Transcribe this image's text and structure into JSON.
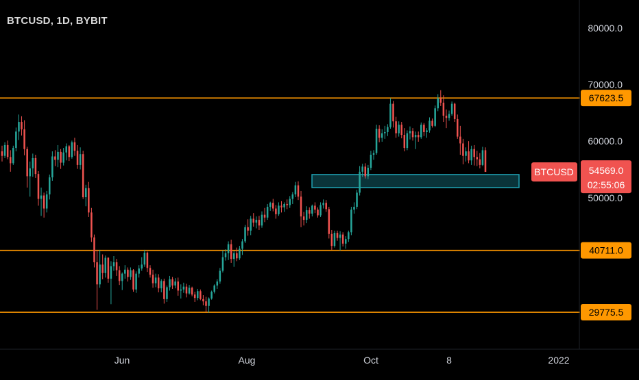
{
  "header": {
    "symbol_title": "BTCUSD, 1D, BYBIT"
  },
  "colors": {
    "background": "#000000",
    "up": "#26a69a",
    "down": "#ef5350",
    "level_line": "#ff9800",
    "zone": "#1fa3b5",
    "axis_text": "#d1d4dc"
  },
  "chart_data": {
    "type": "candlestick",
    "symbol": "BTCUSD",
    "interval": "1D",
    "exchange": "BYBIT",
    "ylim": [
      25000,
      82000
    ],
    "y_ticks": [
      {
        "value": 80000,
        "label": "80000.0"
      },
      {
        "value": 70000,
        "label": "70000.0"
      },
      {
        "value": 60000,
        "label": "60000.0"
      },
      {
        "value": 50000,
        "label": "50000.0"
      }
    ],
    "x_ticks": [
      "Jun",
      "Aug",
      "Oct",
      "8",
      "2022"
    ],
    "horizontal_levels": [
      {
        "value": 67623.5,
        "label": "67623.5"
      },
      {
        "value": 40711.0,
        "label": "40711.0"
      },
      {
        "value": 29775.5,
        "label": "29775.5"
      }
    ],
    "zone": {
      "low": 51800,
      "high": 54100
    },
    "last_price": {
      "symbol": "BTCUSD",
      "value": 54569.0,
      "label": "54569.0",
      "countdown": "02:55:06"
    },
    "candles": [
      [
        58200,
        59200,
        56400,
        57400
      ],
      [
        57400,
        59800,
        57000,
        59300
      ],
      [
        59300,
        60100,
        56800,
        57200
      ],
      [
        57200,
        58400,
        54600,
        56100
      ],
      [
        56100,
        59200,
        55800,
        58800
      ],
      [
        58800,
        62400,
        58200,
        61700
      ],
      [
        61700,
        64700,
        60200,
        63400
      ],
      [
        63400,
        64400,
        61000,
        62100
      ],
      [
        62100,
        63700,
        57500,
        58600
      ],
      [
        58600,
        59000,
        51800,
        53800
      ],
      [
        53800,
        56400,
        50200,
        55200
      ],
      [
        55200,
        57800,
        53700,
        57000
      ],
      [
        57000,
        57600,
        53500,
        54200
      ],
      [
        54200,
        54700,
        48600,
        49800
      ],
      [
        49800,
        51800,
        46800,
        50400
      ],
      [
        50400,
        50900,
        46500,
        48100
      ],
      [
        48100,
        51200,
        47400,
        50600
      ],
      [
        50600,
        54100,
        49700,
        53600
      ],
      [
        53600,
        58200,
        53000,
        57300
      ],
      [
        57300,
        58400,
        55600,
        56700
      ],
      [
        56700,
        59300,
        55400,
        58100
      ],
      [
        58100,
        58600,
        55100,
        56200
      ],
      [
        56200,
        58800,
        55700,
        58000
      ],
      [
        58000,
        59600,
        56600,
        59100
      ],
      [
        59100,
        59300,
        56500,
        57200
      ],
      [
        57200,
        60100,
        56900,
        59800
      ],
      [
        59800,
        60600,
        57400,
        58300
      ],
      [
        58300,
        59300,
        55100,
        55800
      ],
      [
        55800,
        58900,
        55000,
        57700
      ],
      [
        57700,
        58300,
        49800,
        50100
      ],
      [
        50100,
        52300,
        48500,
        51700
      ],
      [
        51700,
        52800,
        46600,
        47400
      ],
      [
        47400,
        48200,
        42200,
        43000
      ],
      [
        43000,
        43500,
        37700,
        38600
      ],
      [
        38600,
        40800,
        30200,
        34700
      ],
      [
        34700,
        40800,
        34100,
        38200
      ],
      [
        38200,
        40000,
        35600,
        36700
      ],
      [
        36700,
        39800,
        35900,
        39400
      ],
      [
        39400,
        39500,
        35000,
        35700
      ],
      [
        35700,
        38800,
        31200,
        37900
      ],
      [
        37900,
        39700,
        37100,
        38600
      ],
      [
        38600,
        39200,
        36200,
        37200
      ],
      [
        37200,
        37900,
        34600,
        35300
      ],
      [
        35300,
        36800,
        33700,
        36600
      ],
      [
        36600,
        38100,
        35700,
        37300
      ],
      [
        37300,
        37700,
        35200,
        36000
      ],
      [
        36000,
        37700,
        35500,
        37200
      ],
      [
        37200,
        37400,
        33400,
        33800
      ],
      [
        33800,
        37000,
        33200,
        36600
      ],
      [
        36600,
        38100,
        35900,
        37500
      ],
      [
        37500,
        39500,
        37100,
        38200
      ],
      [
        38200,
        40800,
        37800,
        40300
      ],
      [
        40300,
        40500,
        36900,
        37600
      ],
      [
        37600,
        38100,
        35900,
        36400
      ],
      [
        36400,
        37300,
        34100,
        34900
      ],
      [
        34900,
        36600,
        34200,
        35900
      ],
      [
        35900,
        36500,
        33300,
        34000
      ],
      [
        34000,
        35600,
        33300,
        35300
      ],
      [
        35300,
        35700,
        31300,
        32100
      ],
      [
        32100,
        34500,
        31600,
        34200
      ],
      [
        34200,
        36200,
        33600,
        35600
      ],
      [
        35600,
        36000,
        33900,
        34500
      ],
      [
        34500,
        35800,
        34000,
        35200
      ],
      [
        35200,
        35900,
        32700,
        33600
      ],
      [
        33600,
        34700,
        32200,
        33800
      ],
      [
        33800,
        35000,
        33200,
        34300
      ],
      [
        34300,
        34800,
        32400,
        33100
      ],
      [
        33100,
        34600,
        32900,
        34100
      ],
      [
        34100,
        34300,
        32600,
        32900
      ],
      [
        32900,
        33400,
        31600,
        32300
      ],
      [
        32300,
        33900,
        31900,
        33500
      ],
      [
        33500,
        33800,
        31900,
        32100
      ],
      [
        32100,
        32800,
        31000,
        31700
      ],
      [
        31700,
        32500,
        29800,
        30900
      ],
      [
        30900,
        32400,
        29700,
        32200
      ],
      [
        32200,
        33600,
        32000,
        33400
      ],
      [
        33400,
        34700,
        33100,
        34500
      ],
      [
        34500,
        35600,
        33900,
        35200
      ],
      [
        35200,
        37600,
        34800,
        37100
      ],
      [
        37100,
        40700,
        36800,
        39500
      ],
      [
        39500,
        40900,
        38900,
        40200
      ],
      [
        40200,
        42300,
        39000,
        41800
      ],
      [
        41800,
        42600,
        38500,
        39200
      ],
      [
        39200,
        40600,
        37800,
        40200
      ],
      [
        40200,
        41200,
        38800,
        39300
      ],
      [
        39300,
        41500,
        39000,
        41000
      ],
      [
        41000,
        42700,
        39900,
        42300
      ],
      [
        42300,
        45200,
        42000,
        44800
      ],
      [
        44800,
        46200,
        43300,
        44200
      ],
      [
        44200,
        46800,
        43400,
        46300
      ],
      [
        46300,
        47300,
        44900,
        45600
      ],
      [
        45600,
        46700,
        44600,
        46100
      ],
      [
        46100,
        46800,
        44300,
        45100
      ],
      [
        45100,
        47600,
        44700,
        47000
      ],
      [
        47000,
        48200,
        45700,
        46500
      ],
      [
        46500,
        48900,
        46100,
        48400
      ],
      [
        48400,
        49300,
        47700,
        49100
      ],
      [
        49100,
        49800,
        47600,
        48100
      ],
      [
        48100,
        48700,
        46300,
        47100
      ],
      [
        47100,
        49200,
        46800,
        48600
      ],
      [
        48600,
        49400,
        47400,
        48300
      ],
      [
        48300,
        49200,
        47500,
        48900
      ],
      [
        48900,
        49700,
        48000,
        48700
      ],
      [
        48700,
        50300,
        48200,
        49800
      ],
      [
        49800,
        51000,
        48900,
        50600
      ],
      [
        50600,
        52800,
        50100,
        52200
      ],
      [
        52200,
        52900,
        49600,
        50200
      ],
      [
        50200,
        51200,
        44800,
        46700
      ],
      [
        46700,
        47500,
        45100,
        46100
      ],
      [
        46100,
        48500,
        45500,
        47800
      ],
      [
        47800,
        48300,
        46300,
        47200
      ],
      [
        47200,
        48800,
        46700,
        48600
      ],
      [
        48600,
        49200,
        47300,
        47900
      ],
      [
        47900,
        48300,
        46500,
        46900
      ],
      [
        46900,
        49200,
        46600,
        48700
      ],
      [
        48700,
        49700,
        48100,
        49100
      ],
      [
        49100,
        49600,
        47500,
        48000
      ],
      [
        48000,
        48400,
        42800,
        43600
      ],
      [
        43600,
        44300,
        40800,
        41500
      ],
      [
        41500,
        44200,
        41200,
        43800
      ],
      [
        43800,
        44200,
        42400,
        42900
      ],
      [
        42900,
        44100,
        40700,
        43500
      ],
      [
        43500,
        43900,
        41400,
        41900
      ],
      [
        41900,
        43200,
        41000,
        42700
      ],
      [
        42700,
        44200,
        42200,
        43900
      ],
      [
        43900,
        48400,
        43400,
        47900
      ],
      [
        47900,
        49200,
        47200,
        48400
      ],
      [
        48400,
        51400,
        48000,
        50900
      ],
      [
        50900,
        55600,
        50400,
        54600
      ],
      [
        54600,
        56000,
        53700,
        55500
      ],
      [
        55500,
        56100,
        53400,
        53800
      ],
      [
        53800,
        55800,
        53300,
        55300
      ],
      [
        55300,
        58300,
        54900,
        57600
      ],
      [
        57600,
        58400,
        56700,
        57900
      ],
      [
        57900,
        62900,
        57600,
        62200
      ],
      [
        62200,
        62800,
        59800,
        60600
      ],
      [
        60600,
        62100,
        59900,
        61400
      ],
      [
        61400,
        62700,
        60400,
        61600
      ],
      [
        61600,
        63000,
        60900,
        62500
      ],
      [
        62500,
        67600,
        62200,
        66600
      ],
      [
        66600,
        67100,
        62400,
        63500
      ],
      [
        63500,
        64300,
        60600,
        61400
      ],
      [
        61400,
        63500,
        60800,
        62900
      ],
      [
        62900,
        63400,
        60500,
        61100
      ],
      [
        61100,
        62300,
        58200,
        58800
      ],
      [
        58800,
        61900,
        58400,
        61400
      ],
      [
        61400,
        62600,
        60300,
        61800
      ],
      [
        61800,
        62300,
        60100,
        60700
      ],
      [
        60700,
        61700,
        58600,
        61100
      ],
      [
        61100,
        61700,
        59900,
        60700
      ],
      [
        60700,
        63300,
        60400,
        62900
      ],
      [
        62900,
        63200,
        60900,
        61600
      ],
      [
        61600,
        62300,
        60600,
        61900
      ],
      [
        61900,
        64200,
        61500,
        63600
      ],
      [
        63600,
        64000,
        62400,
        62700
      ],
      [
        62700,
        66300,
        62500,
        65800
      ],
      [
        65800,
        68300,
        65300,
        67600
      ],
      [
        67600,
        69000,
        66200,
        66800
      ],
      [
        66800,
        68100,
        63400,
        64500
      ],
      [
        64500,
        65600,
        62300,
        64100
      ],
      [
        64100,
        65400,
        63600,
        64800
      ],
      [
        64800,
        67000,
        64500,
        66600
      ],
      [
        66600,
        66800,
        63400,
        63900
      ],
      [
        63900,
        64700,
        60400,
        60800
      ],
      [
        60800,
        62700,
        57600,
        59600
      ],
      [
        59600,
        60400,
        55900,
        57400
      ],
      [
        57400,
        58900,
        56400,
        58200
      ],
      [
        58200,
        60000,
        56100,
        56600
      ],
      [
        56600,
        59200,
        55800,
        58600
      ],
      [
        58600,
        59300,
        55700,
        57200
      ],
      [
        57200,
        58300,
        55600,
        56800
      ],
      [
        56800,
        57900,
        55200,
        55800
      ],
      [
        55800,
        59000,
        55600,
        58400
      ],
      [
        58400,
        58900,
        54800,
        54569
      ]
    ]
  }
}
